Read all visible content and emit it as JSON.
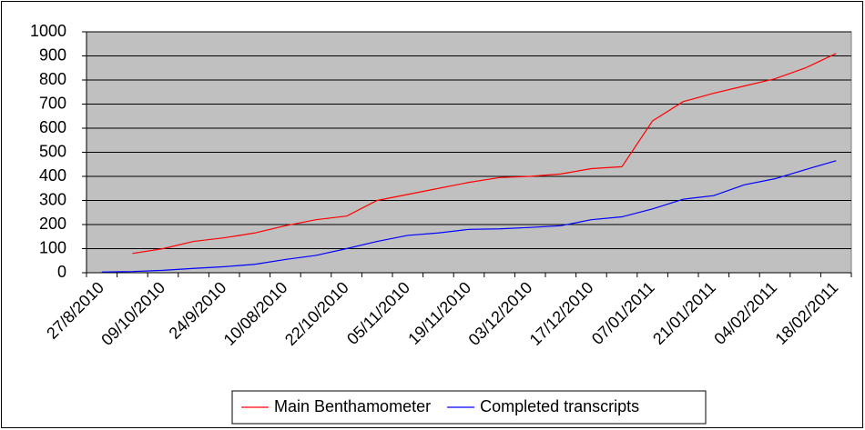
{
  "chart_data": {
    "type": "line",
    "categories": [
      "27/8/2010",
      null,
      "09/10/2010",
      null,
      "24/9/2010",
      null,
      "10/08/2010",
      null,
      "22/10/2010",
      null,
      "05/11/2010",
      null,
      "19/11/2010",
      null,
      "03/12/2010",
      null,
      "17/12/2010",
      null,
      "07/01/2011",
      null,
      "21/01/2011",
      null,
      "04/02/2011",
      null,
      "18/02/2011"
    ],
    "series": [
      {
        "name": "Main Benthamometer",
        "color": "#ff0000",
        "values": [
          null,
          80,
          100,
          130,
          145,
          165,
          195,
          220,
          235,
          300,
          325,
          350,
          375,
          395,
          400,
          410,
          432,
          440,
          630,
          710,
          745,
          775,
          805,
          850,
          910
        ]
      },
      {
        "name": "Completed transcripts",
        "color": "#0000ff",
        "values": [
          3,
          5,
          10,
          18,
          25,
          35,
          55,
          72,
          100,
          130,
          155,
          165,
          180,
          182,
          188,
          195,
          220,
          232,
          265,
          305,
          320,
          365,
          390,
          428,
          465
        ]
      }
    ],
    "ylim": [
      0,
      1000
    ],
    "yticks": [
      0,
      100,
      200,
      300,
      400,
      500,
      600,
      700,
      800,
      900,
      1000
    ],
    "grid": true,
    "legend": "bottom",
    "plot_background": "#c0c0c0"
  }
}
